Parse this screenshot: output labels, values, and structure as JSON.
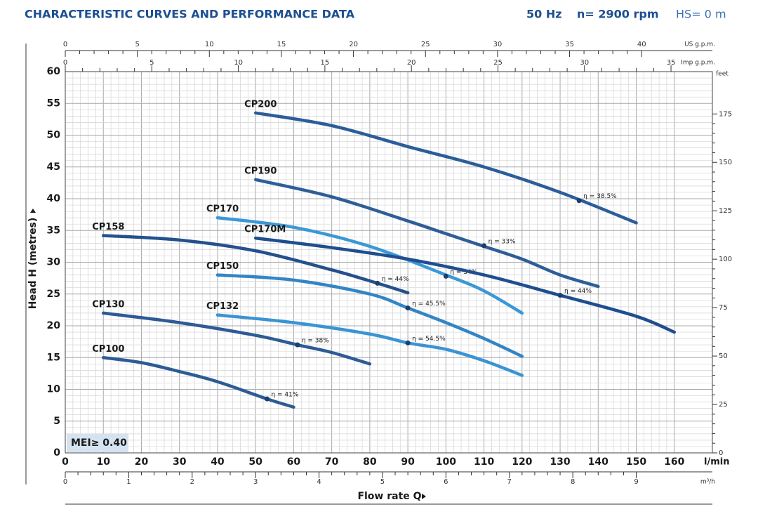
{
  "chart_data": {
    "type": "line",
    "title": "CHARACTERISTIC CURVES AND PERFORMANCE DATA",
    "header_info": [
      "50 Hz",
      "n= 2900 rpm",
      "HS= 0 m"
    ],
    "x_label": "Flow rate Q",
    "x_unit": "l/min",
    "y_label": "Head H  (metres)",
    "xlim": [
      0,
      170
    ],
    "xticks": [
      0,
      10,
      20,
      30,
      40,
      50,
      60,
      70,
      80,
      90,
      100,
      110,
      120,
      130,
      140,
      150,
      160
    ],
    "ylim": [
      0,
      60
    ],
    "yticks": [
      0,
      5,
      10,
      15,
      20,
      25,
      30,
      35,
      40,
      45,
      50,
      55,
      60
    ],
    "grid": true,
    "minor_grid": true,
    "secondary_axes": [
      {
        "position": "bottom",
        "unit": "m³/h",
        "lim": [
          0,
          10.2
        ],
        "ticks": [
          0,
          1,
          2,
          3,
          4,
          5,
          6,
          7,
          8,
          9
        ]
      },
      {
        "position": "top",
        "unit": "US g.p.m.",
        "lim": [
          0,
          44.91
        ],
        "ticks": [
          0,
          5,
          10,
          15,
          20,
          25,
          30,
          35,
          40
        ]
      },
      {
        "position": "top-inner",
        "unit": "Imp g.p.m.",
        "lim": [
          0,
          37.39
        ],
        "ticks": [
          0,
          5,
          10,
          15,
          20,
          25,
          30,
          35
        ]
      },
      {
        "position": "right",
        "unit": "feet",
        "lim": [
          0,
          196.85
        ],
        "ticks": [
          0,
          25,
          50,
          75,
          100,
          125,
          150,
          175
        ]
      }
    ],
    "badge": "MEI≥ 0.40",
    "series": [
      {
        "name": "CP200",
        "color": "#2b5d9b",
        "x": [
          50,
          70,
          90,
          110,
          130,
          150
        ],
        "values": [
          53.5,
          51.5,
          48.2,
          45,
          41,
          36.2
        ],
        "efficiency_point": {
          "x": 135,
          "y": 39.7,
          "label": "η = 38.5%"
        }
      },
      {
        "name": "CP190",
        "color": "#2e5e98",
        "x": [
          50,
          70,
          90,
          100,
          110,
          120,
          130,
          140
        ],
        "values": [
          43,
          40.3,
          36.5,
          34.5,
          32.5,
          30.5,
          28,
          26.2
        ],
        "efficiency_point": {
          "x": 110,
          "y": 32.6,
          "label": "η = 33%"
        }
      },
      {
        "name": "CP170",
        "color": "#3b98d6",
        "x": [
          40,
          60,
          80,
          100,
          110,
          120
        ],
        "values": [
          37,
          35.5,
          32.5,
          28,
          25.5,
          22
        ],
        "efficiency_point": {
          "x": 100,
          "y": 27.8,
          "label": "η = 34%"
        }
      },
      {
        "name": "CP170M",
        "color": "#1f4e90",
        "x": [
          50,
          70,
          90,
          110,
          130,
          150,
          160
        ],
        "values": [
          33.8,
          32.3,
          30.5,
          28,
          24.8,
          21.5,
          19
        ],
        "efficiency_point": {
          "x": 130,
          "y": 24.8,
          "label": "η = 44%"
        }
      },
      {
        "name": "CP158",
        "color": "#24508e",
        "x": [
          10,
          30,
          50,
          70,
          82,
          90
        ],
        "values": [
          34.2,
          33.5,
          31.8,
          28.8,
          26.7,
          25.2
        ],
        "efficiency_point": {
          "x": 82,
          "y": 26.7,
          "label": "η = 44%"
        }
      },
      {
        "name": "CP150",
        "color": "#3285c6",
        "x": [
          40,
          60,
          80,
          90,
          100,
          110,
          120
        ],
        "values": [
          28,
          27.2,
          25,
          22.8,
          20.5,
          18,
          15.2
        ],
        "efficiency_point": {
          "x": 90,
          "y": 22.8,
          "label": "η = 45.5%"
        }
      },
      {
        "name": "CP132",
        "color": "#3a94d4",
        "x": [
          40,
          60,
          80,
          90,
          100,
          110,
          120
        ],
        "values": [
          21.7,
          20.5,
          18.7,
          17.3,
          16.3,
          14.5,
          12.2
        ],
        "efficiency_point": {
          "x": 90,
          "y": 17.3,
          "label": "η = 54.5%"
        }
      },
      {
        "name": "CP130",
        "color": "#2d5b95",
        "x": [
          10,
          30,
          50,
          61,
          70,
          80
        ],
        "values": [
          22,
          20.5,
          18.5,
          17,
          15.8,
          14
        ],
        "efficiency_point": {
          "x": 61,
          "y": 17,
          "label": "η = 38%"
        }
      },
      {
        "name": "CP100",
        "color": "#2d5b95",
        "x": [
          10,
          20,
          30,
          40,
          53,
          60
        ],
        "values": [
          15,
          14.2,
          12.8,
          11.2,
          8.5,
          7.2
        ],
        "efficiency_point": {
          "x": 53,
          "y": 8.5,
          "label": "η = 41%"
        }
      }
    ]
  }
}
